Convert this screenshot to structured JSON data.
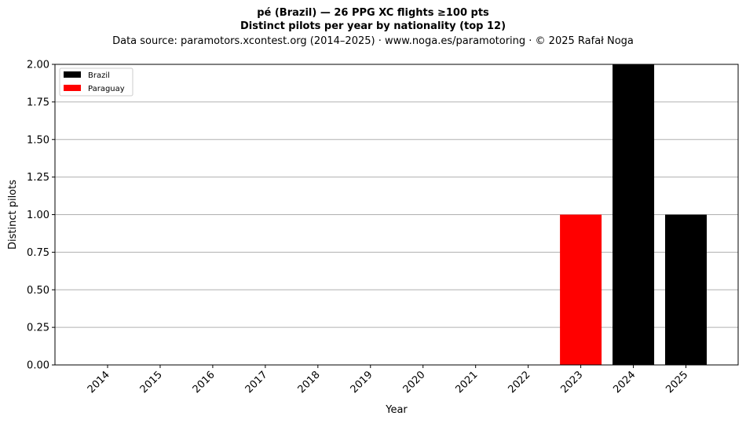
{
  "chart_data": {
    "type": "bar",
    "title_line1": "pé (Brazil)  —  26 PPG XC flights ≥100 pts",
    "title_line2": "Distinct pilots per year by nationality (top 12)",
    "subtitle": "Data source: paramotors.xcontest.org (2014–2025)  ·  www.noga.es/paramotoring  ·  © 2025 Rafał Noga",
    "xlabel": "Year",
    "ylabel": "Distinct pilots",
    "categories": [
      "2014",
      "2015",
      "2016",
      "2017",
      "2018",
      "2019",
      "2020",
      "2021",
      "2022",
      "2023",
      "2024",
      "2025"
    ],
    "series": [
      {
        "name": "Brazil",
        "color": "#000000",
        "values": [
          0,
          0,
          0,
          0,
          0,
          0,
          0,
          0,
          0,
          0,
          2,
          1
        ]
      },
      {
        "name": "Paraguay",
        "color": "#ff0000",
        "values": [
          0,
          0,
          0,
          0,
          0,
          0,
          0,
          0,
          0,
          1,
          0,
          0
        ]
      }
    ],
    "ylim": [
      0,
      2.0
    ],
    "yticks": [
      "0.00",
      "0.25",
      "0.50",
      "0.75",
      "1.00",
      "1.25",
      "1.50",
      "1.75",
      "2.00"
    ],
    "grid": "y",
    "legend_position": "top-left"
  }
}
